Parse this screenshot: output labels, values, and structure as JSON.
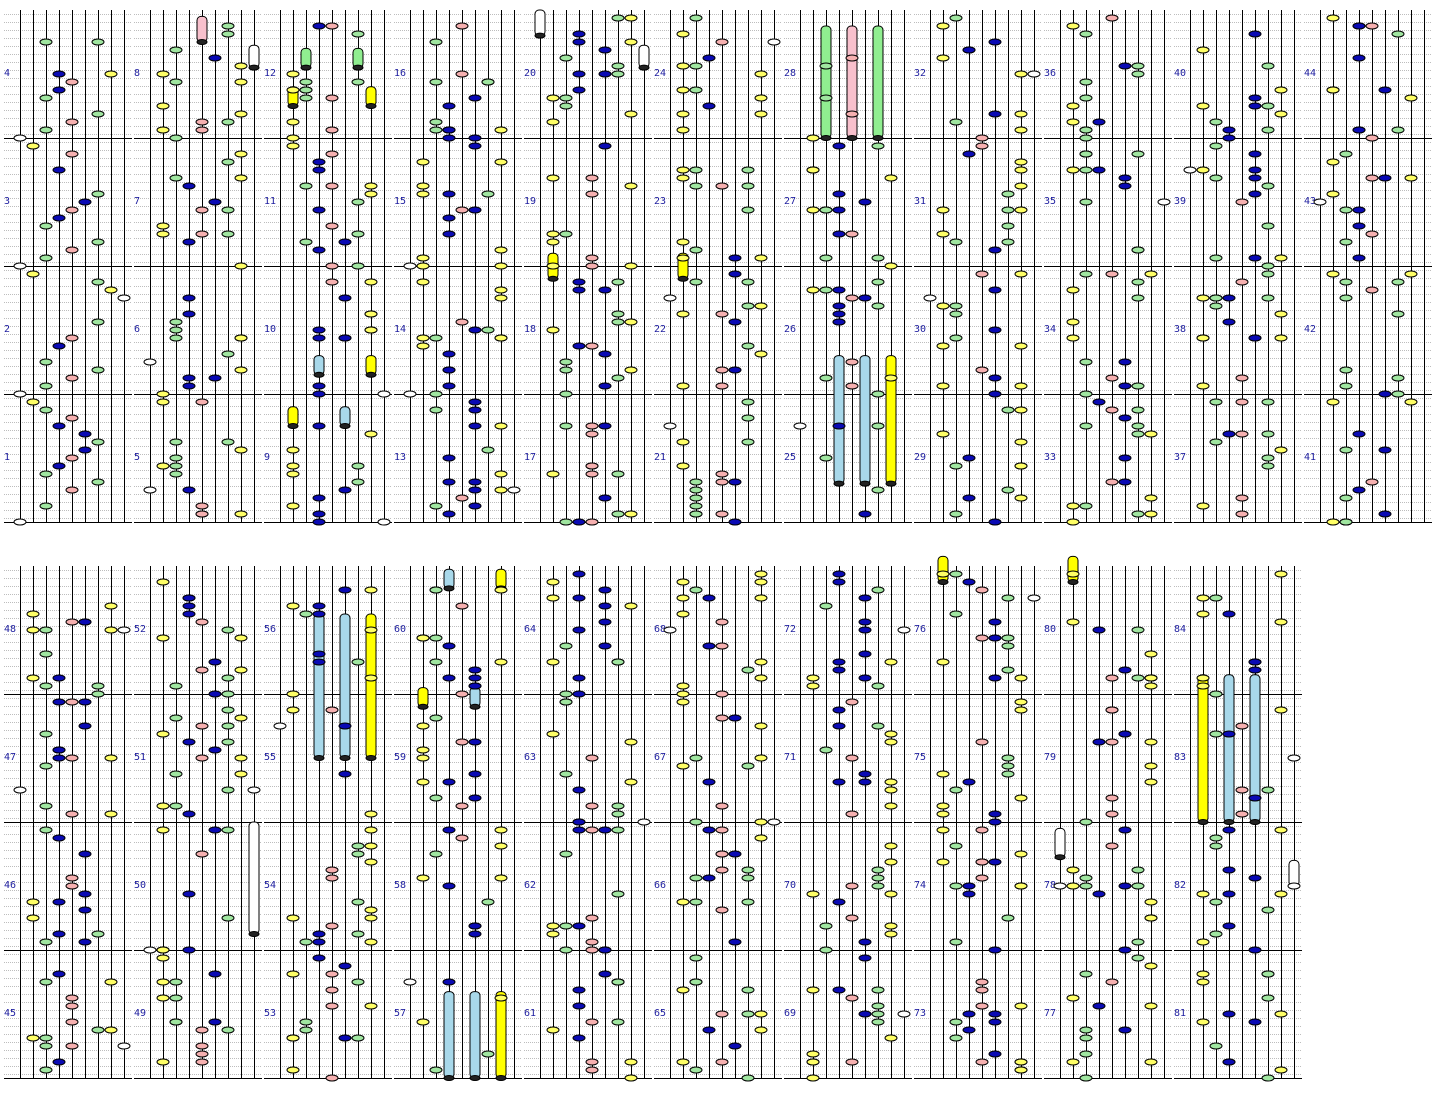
{
  "chart_type": "beatmap-lane-chart",
  "colors": {
    "background": "#ffffff",
    "lane_line": "#000000",
    "measure_line": "#000000",
    "beat_line": "#bdbdbd",
    "label": "#2020a0",
    "note_white": "#ffffff",
    "note_yellow": "#ffff66",
    "note_green": "#a0e6a0",
    "note_blue": "#0a0ab4",
    "note_pink": "#f6b0b0",
    "long_green": "#90ee90",
    "long_pink": "#f8c0cc",
    "long_blue": "#a8d8ea",
    "long_yellow": "#ffff00",
    "long_white": "#ffffff"
  },
  "lane_colors": [
    "white",
    "yellow",
    "green",
    "blue",
    "pink",
    "blue",
    "green",
    "yellow",
    "white"
  ],
  "rows": [
    {
      "columns": 11,
      "measures_per_column": 4,
      "first_measure": 1
    },
    {
      "columns": 10,
      "measures_per_column": 4,
      "first_measure": 45
    }
  ],
  "measures": [
    {
      "n": 1,
      "label": "1"
    },
    {
      "n": 2,
      "label": "2"
    },
    {
      "n": 3,
      "label": "3"
    },
    {
      "n": 4,
      "label": "4"
    },
    {
      "n": 5,
      "label": "5"
    },
    {
      "n": 6,
      "label": "6"
    },
    {
      "n": 7,
      "label": "7"
    },
    {
      "n": 8,
      "label": "8"
    },
    {
      "n": 9,
      "label": "9"
    },
    {
      "n": 10,
      "label": "10"
    },
    {
      "n": 11,
      "label": "11"
    },
    {
      "n": 12,
      "label": "12"
    },
    {
      "n": 13,
      "label": "13"
    },
    {
      "n": 14,
      "label": "14"
    },
    {
      "n": 15,
      "label": "15"
    },
    {
      "n": 16,
      "label": "16"
    },
    {
      "n": 17,
      "label": "17"
    },
    {
      "n": 18,
      "label": "18"
    },
    {
      "n": 19,
      "label": "19"
    },
    {
      "n": 20,
      "label": "20"
    },
    {
      "n": 21,
      "label": "21"
    },
    {
      "n": 22,
      "label": "22"
    },
    {
      "n": 23,
      "label": "23"
    },
    {
      "n": 24,
      "label": "24"
    },
    {
      "n": 25,
      "label": "25"
    },
    {
      "n": 26,
      "label": "26"
    },
    {
      "n": 27,
      "label": "27"
    },
    {
      "n": 28,
      "label": "28"
    },
    {
      "n": 29,
      "label": "29"
    },
    {
      "n": 30,
      "label": "30"
    },
    {
      "n": 31,
      "label": "31"
    },
    {
      "n": 32,
      "label": "32"
    },
    {
      "n": 33,
      "label": "33"
    },
    {
      "n": 34,
      "label": "34"
    },
    {
      "n": 35,
      "label": "35"
    },
    {
      "n": 36,
      "label": "36"
    },
    {
      "n": 37,
      "label": "37"
    },
    {
      "n": 38,
      "label": "38"
    },
    {
      "n": 39,
      "label": "39"
    },
    {
      "n": 40,
      "label": "40"
    },
    {
      "n": 41,
      "label": "41"
    },
    {
      "n": 42,
      "label": "42"
    },
    {
      "n": 43,
      "label": "43"
    },
    {
      "n": 44,
      "label": "44"
    },
    {
      "n": 45,
      "label": "45"
    },
    {
      "n": 46,
      "label": "46"
    },
    {
      "n": 47,
      "label": "47"
    },
    {
      "n": 48,
      "label": "48"
    },
    {
      "n": 49,
      "label": "49"
    },
    {
      "n": 50,
      "label": "50"
    },
    {
      "n": 51,
      "label": "51"
    },
    {
      "n": 52,
      "label": "52"
    },
    {
      "n": 53,
      "label": "53"
    },
    {
      "n": 54,
      "label": "54"
    },
    {
      "n": 55,
      "label": "55"
    },
    {
      "n": 56,
      "label": "56"
    },
    {
      "n": 57,
      "label": "57"
    },
    {
      "n": 58,
      "label": "58"
    },
    {
      "n": 59,
      "label": "59"
    },
    {
      "n": 60,
      "label": "60"
    },
    {
      "n": 61,
      "label": "61"
    },
    {
      "n": 62,
      "label": "62"
    },
    {
      "n": 63,
      "label": "63"
    },
    {
      "n": 64,
      "label": "64"
    },
    {
      "n": 65,
      "label": "65"
    },
    {
      "n": 66,
      "label": "66"
    },
    {
      "n": 67,
      "label": "67"
    },
    {
      "n": 68,
      "label": "68"
    },
    {
      "n": 69,
      "label": "69"
    },
    {
      "n": 70,
      "label": "70"
    },
    {
      "n": 71,
      "label": "71"
    },
    {
      "n": 72,
      "label": "72"
    },
    {
      "n": 73,
      "label": "73"
    },
    {
      "n": 74,
      "label": "74"
    },
    {
      "n": 75,
      "label": "75"
    },
    {
      "n": 76,
      "label": "76"
    },
    {
      "n": 77,
      "label": "77"
    },
    {
      "n": 78,
      "label": "78"
    },
    {
      "n": 79,
      "label": "79"
    },
    {
      "n": 80,
      "label": "80"
    },
    {
      "n": 81,
      "label": "81"
    },
    {
      "n": 82,
      "label": "82"
    },
    {
      "n": 83,
      "label": "83"
    },
    {
      "n": 84,
      "label": "84"
    }
  ],
  "notes": [
    {
      "m": 1,
      "lane": 0,
      "beat": 0
    },
    {
      "m": 1,
      "lane": 2,
      "beat": 0.5
    },
    {
      "m": 1,
      "lane": 4,
      "beat": 1
    },
    {
      "m": 1,
      "lane": 6,
      "beat": 1.25
    },
    {
      "m": 1,
      "lane": 2,
      "beat": 1.5
    },
    {
      "m": 1,
      "lane": 3,
      "beat": 1.75
    },
    {
      "m": 1,
      "lane": 4,
      "beat": 2
    },
    {
      "m": 1,
      "lane": 5,
      "beat": 2.25
    },
    {
      "m": 1,
      "lane": 6,
      "beat": 2.5
    },
    {
      "m": 1,
      "lane": 5,
      "beat": 2.75
    },
    {
      "m": 1,
      "lane": 3,
      "beat": 3
    },
    {
      "m": 1,
      "lane": 4,
      "beat": 3.25
    },
    {
      "m": 1,
      "lane": 2,
      "beat": 3.5
    },
    {
      "m": 1,
      "lane": 1,
      "beat": 3.75
    },
    {
      "m": 2,
      "lane": 0,
      "beat": 0
    },
    {
      "m": 2,
      "lane": 2,
      "beat": 0.25
    },
    {
      "m": 2,
      "lane": 4,
      "beat": 0.5
    },
    {
      "m": 2,
      "lane": 2,
      "beat": 1
    },
    {
      "m": 2,
      "lane": 6,
      "beat": 0.75
    },
    {
      "m": 2,
      "lane": 3,
      "beat": 1.5
    },
    {
      "m": 2,
      "lane": 4,
      "beat": 1.75
    },
    {
      "m": 2,
      "lane": 6,
      "beat": 2.25
    },
    {
      "m": 2,
      "lane": 8,
      "beat": 3
    },
    {
      "m": 2,
      "lane": 7,
      "beat": 3.25
    },
    {
      "m": 2,
      "lane": 6,
      "beat": 3.5
    },
    {
      "m": 2,
      "lane": 1,
      "beat": 3.75
    },
    {
      "m": 3,
      "lane": 0,
      "beat": 0
    },
    {
      "m": 3,
      "lane": 2,
      "beat": 0.25
    },
    {
      "m": 3,
      "lane": 4,
      "beat": 0.5
    },
    {
      "m": 3,
      "lane": 6,
      "beat": 0.75
    },
    {
      "m": 3,
      "lane": 2,
      "beat": 1.25
    },
    {
      "m": 3,
      "lane": 3,
      "beat": 1.5
    },
    {
      "m": 3,
      "lane": 4,
      "beat": 1.75
    },
    {
      "m": 3,
      "lane": 5,
      "beat": 2
    },
    {
      "m": 3,
      "lane": 6,
      "beat": 2.25
    },
    {
      "m": 3,
      "lane": 3,
      "beat": 3
    },
    {
      "m": 3,
      "lane": 4,
      "beat": 3.5
    },
    {
      "m": 3,
      "lane": 1,
      "beat": 3.75
    },
    {
      "m": 4,
      "lane": 0,
      "beat": 0
    },
    {
      "m": 4,
      "lane": 2,
      "beat": 0.25
    },
    {
      "m": 4,
      "lane": 4,
      "beat": 0.5
    },
    {
      "m": 4,
      "lane": 6,
      "beat": 0.75
    },
    {
      "m": 4,
      "lane": 2,
      "beat": 1.25
    },
    {
      "m": 4,
      "lane": 3,
      "beat": 1.5
    },
    {
      "m": 4,
      "lane": 4,
      "beat": 1.75
    },
    {
      "m": 4,
      "lane": 3,
      "beat": 2
    },
    {
      "m": 4,
      "lane": 7,
      "beat": 2
    },
    {
      "m": 4,
      "lane": 2,
      "beat": 3
    },
    {
      "m": 4,
      "lane": 6,
      "beat": 3
    }
  ],
  "long_notes": [
    {
      "m": 8,
      "lane": 4,
      "beat": 3.0,
      "len": 0.8
    },
    {
      "m": 8,
      "lane": 8,
      "beat": 2.2,
      "len": 0.7
    },
    {
      "m": 12,
      "lane": 2,
      "beat": 2.2,
      "len": 0.6
    },
    {
      "m": 12,
      "lane": 6,
      "beat": 2.2,
      "len": 0.6
    },
    {
      "m": 12,
      "lane": 1,
      "beat": 1.0,
      "len": 0.6
    },
    {
      "m": 12,
      "lane": 7,
      "beat": 1.0,
      "len": 0.6
    },
    {
      "m": 10,
      "lane": 3,
      "beat": 0.6,
      "len": 0.6
    },
    {
      "m": 10,
      "lane": 7,
      "beat": 0.6,
      "len": 0.6
    },
    {
      "m": 9,
      "lane": 1,
      "beat": 3.0,
      "len": 0.6
    },
    {
      "m": 9,
      "lane": 5,
      "beat": 3.0,
      "len": 0.6
    },
    {
      "m": 20,
      "lane": 0,
      "beat": 3.2,
      "len": 0.8
    },
    {
      "m": 20,
      "lane": 8,
      "beat": 2.2,
      "len": 0.7
    },
    {
      "m": 18,
      "lane": 1,
      "beat": 3.6,
      "len": 0.8
    },
    {
      "m": 22,
      "lane": 1,
      "beat": 3.6,
      "len": 0.8
    },
    {
      "m": 28,
      "lane": 2,
      "beat": 0.0,
      "len": 3.5
    },
    {
      "m": 28,
      "lane": 4,
      "beat": 0.0,
      "len": 3.5
    },
    {
      "m": 28,
      "lane": 6,
      "beat": 0.0,
      "len": 3.5
    },
    {
      "m": 25,
      "lane": 3,
      "beat": 1.2,
      "len": 4.0
    },
    {
      "m": 25,
      "lane": 5,
      "beat": 1.2,
      "len": 4.0
    },
    {
      "m": 25,
      "lane": 7,
      "beat": 1.2,
      "len": 4.0
    },
    {
      "m": 50,
      "lane": 8,
      "beat": 0.5,
      "len": 3.5
    },
    {
      "m": 55,
      "lane": 3,
      "beat": 2.0,
      "len": 4.5
    },
    {
      "m": 55,
      "lane": 5,
      "beat": 2.0,
      "len": 4.5
    },
    {
      "m": 55,
      "lane": 7,
      "beat": 2.0,
      "len": 4.5
    },
    {
      "m": 60,
      "lane": 3,
      "beat": 3.3,
      "len": 0.6
    },
    {
      "m": 60,
      "lane": 7,
      "beat": 3.3,
      "len": 0.6
    },
    {
      "m": 59,
      "lane": 1,
      "beat": 3.6,
      "len": 0.6
    },
    {
      "m": 59,
      "lane": 5,
      "beat": 3.6,
      "len": 0.6
    },
    {
      "m": 57,
      "lane": 3,
      "beat": 0.0,
      "len": 2.7
    },
    {
      "m": 57,
      "lane": 5,
      "beat": 0.0,
      "len": 2.7
    },
    {
      "m": 57,
      "lane": 7,
      "beat": 0.0,
      "len": 2.7
    },
    {
      "m": 76,
      "lane": 1,
      "beat": 3.5,
      "len": 0.8
    },
    {
      "m": 80,
      "lane": 1,
      "beat": 3.5,
      "len": 0.8
    },
    {
      "m": 78,
      "lane": 0,
      "beat": 2.9,
      "len": 0.9
    },
    {
      "m": 82,
      "lane": 8,
      "beat": 2.0,
      "len": 0.8
    },
    {
      "m": 83,
      "lane": 1,
      "beat": 0.0,
      "len": 4.6
    },
    {
      "m": 83,
      "lane": 3,
      "beat": 0.0,
      "len": 4.6
    },
    {
      "m": 83,
      "lane": 5,
      "beat": 0.0,
      "len": 4.6
    }
  ]
}
